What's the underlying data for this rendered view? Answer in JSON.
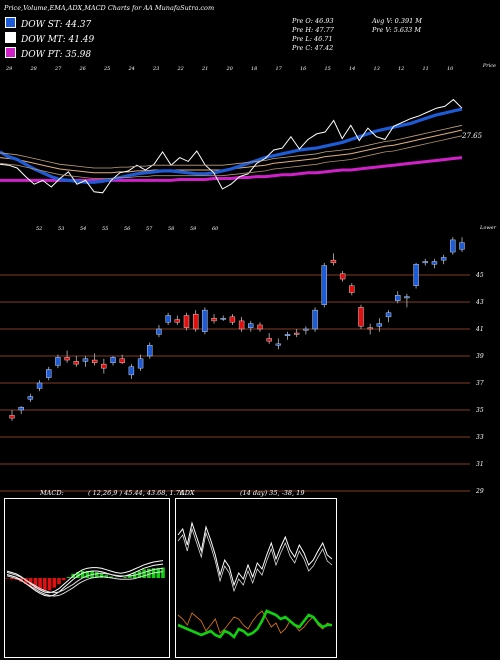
{
  "header": {
    "title": "Price,Volume,EMA,ADX,MACD Charts for AA MunafaSutra.com"
  },
  "legend": [
    {
      "label": "DOW ST: 44.37",
      "color": "#1e5bd6"
    },
    {
      "label": "DOW MT: 41.49",
      "color": "#ffffff"
    },
    {
      "label": "DOW PT: 35.98",
      "color": "#d020c8"
    }
  ],
  "stats": {
    "open": "Pre  O: 46.93",
    "high": "Pre  H: 47.77",
    "low": "Pre  L: 46.71",
    "close": "Pre  C: 47.42",
    "avg_vol": "Avg V: 0.391 M",
    "pre_vol": "Pre  V: 5.633 M"
  },
  "colors": {
    "up": "#1e5bd6",
    "down": "#e01010",
    "ema_fast": "#1e5bd6",
    "ema_pt": "#d020c8",
    "grid": "#b05030",
    "adx_green": "#10d010",
    "adx_orange": "#d07010"
  },
  "chart_data": [
    {
      "type": "line",
      "title": "Price vs EMA",
      "annotations": [
        "Price",
        "27.65",
        "Lower"
      ],
      "top_axis_labels": [
        "29",
        "28",
        "27",
        "26",
        "25",
        "24",
        "23",
        "22",
        "21",
        "20",
        "18",
        "17",
        "16",
        "15",
        "14",
        "13",
        "12",
        "11",
        "10"
      ],
      "upper_labels": [
        "52",
        "53",
        "54",
        "55",
        "56",
        "57",
        "58",
        "59",
        "60"
      ],
      "series": [
        {
          "name": "Price",
          "values": [
            22.5,
            22.4,
            22.1,
            21.2,
            20.4,
            20.8,
            20.1,
            21.0,
            21.7,
            20.4,
            20.8,
            19.6,
            19.5,
            20.8,
            21.6,
            21.8,
            22.4,
            21.9,
            22.5,
            23.8,
            22.4,
            23.2,
            22.8,
            23.9,
            22.4,
            21.6,
            19.9,
            20.4,
            21.2,
            21.5,
            22.6,
            23.1,
            24.0,
            24.2,
            25.4,
            24.1,
            25.1,
            25.7,
            25.9,
            27.1,
            25.2,
            26.6,
            25.0,
            26.3,
            25.4,
            25.1,
            26.5,
            26.9,
            27.3,
            27.6,
            28.0,
            28.4,
            28.6,
            29.3,
            28.4
          ]
        },
        {
          "name": "DOW ST",
          "values": [
            23.8,
            23.3,
            23.0,
            22.5,
            22.0,
            21.6,
            21.2,
            20.9,
            20.8,
            20.7,
            20.6,
            20.6,
            20.7,
            20.9,
            21.1,
            21.3,
            21.5,
            21.6,
            21.7,
            21.8,
            21.8,
            21.7,
            21.6,
            21.5,
            21.5,
            21.6,
            21.8,
            22.0,
            22.3,
            22.6,
            22.9,
            23.2,
            23.4,
            23.6,
            23.8,
            24.0,
            24.1,
            24.2,
            24.4,
            24.6,
            24.8,
            25.1,
            25.4,
            25.7,
            26.0,
            26.2,
            26.4,
            26.6,
            26.8,
            27.1,
            27.4,
            27.7,
            27.9,
            28.1,
            28.3
          ]
        },
        {
          "name": "DOW MT",
          "values": [
            23.2,
            23.1,
            23.0,
            22.8,
            22.6,
            22.4,
            22.2,
            22.0,
            21.9,
            21.8,
            21.7,
            21.6,
            21.6,
            21.6,
            21.7,
            21.7,
            21.8,
            21.8,
            21.9,
            21.9,
            21.9,
            21.9,
            21.9,
            21.9,
            21.9,
            21.9,
            21.9,
            22.0,
            22.1,
            22.2,
            22.3,
            22.4,
            22.6,
            22.7,
            22.8,
            22.9,
            23.0,
            23.1,
            23.3,
            23.4,
            23.5,
            23.6,
            23.8,
            24.0,
            24.2,
            24.4,
            24.5,
            24.7,
            24.9,
            25.1,
            25.3,
            25.5,
            25.7,
            25.9,
            26.1
          ]
        },
        {
          "name": "DOW PT",
          "values": [
            20.8,
            20.8,
            20.8,
            20.8,
            20.8,
            20.8,
            20.8,
            20.8,
            20.8,
            20.8,
            20.8,
            20.8,
            20.8,
            20.8,
            20.8,
            20.8,
            20.8,
            20.8,
            20.8,
            20.8,
            20.8,
            20.9,
            20.9,
            20.9,
            20.9,
            21.0,
            21.0,
            21.0,
            21.1,
            21.1,
            21.2,
            21.2,
            21.3,
            21.4,
            21.4,
            21.5,
            21.6,
            21.6,
            21.7,
            21.8,
            21.9,
            21.9,
            22.0,
            22.1,
            22.2,
            22.3,
            22.4,
            22.5,
            22.6,
            22.7,
            22.8,
            22.9,
            23.0,
            23.1,
            23.2
          ]
        }
      ]
    },
    {
      "type": "bar",
      "title": "Daily candles",
      "y_ticks": [
        "45",
        "43",
        "41",
        "39",
        "37",
        "35",
        "33",
        "31",
        "29"
      ],
      "ylim": [
        28,
        48
      ],
      "candles": [
        [
          34.6,
          35.0,
          34.2,
          34.4
        ],
        [
          35.0,
          35.3,
          34.7,
          35.2
        ],
        [
          35.8,
          36.2,
          35.6,
          36.0
        ],
        [
          36.6,
          37.2,
          36.4,
          37.0
        ],
        [
          37.4,
          38.2,
          37.2,
          38.0
        ],
        [
          38.3,
          39.1,
          38.1,
          38.9
        ],
        [
          38.9,
          39.4,
          38.5,
          38.7
        ],
        [
          38.6,
          39.0,
          38.2,
          38.4
        ],
        [
          38.6,
          39.0,
          38.2,
          38.8
        ],
        [
          38.7,
          39.2,
          38.3,
          38.5
        ],
        [
          38.4,
          38.8,
          37.7,
          38.1
        ],
        [
          38.5,
          39.0,
          38.3,
          38.9
        ],
        [
          38.8,
          39.1,
          38.4,
          38.5
        ],
        [
          37.6,
          38.4,
          37.3,
          38.2
        ],
        [
          38.1,
          39.1,
          37.9,
          38.8
        ],
        [
          39.0,
          40.0,
          38.8,
          39.8
        ],
        [
          40.6,
          41.3,
          40.4,
          41.0
        ],
        [
          41.5,
          42.2,
          41.3,
          42.0
        ],
        [
          41.7,
          42.0,
          41.3,
          41.5
        ],
        [
          42.0,
          42.2,
          40.9,
          41.1
        ],
        [
          42.1,
          42.4,
          40.8,
          41.0
        ],
        [
          40.8,
          42.6,
          40.6,
          42.4
        ],
        [
          41.8,
          42.1,
          41.4,
          41.6
        ],
        [
          41.8,
          42.0,
          41.6,
          41.8
        ],
        [
          41.9,
          42.1,
          41.3,
          41.5
        ],
        [
          41.6,
          41.9,
          40.8,
          41.0
        ],
        [
          41.1,
          41.6,
          40.8,
          41.4
        ],
        [
          41.3,
          41.5,
          40.8,
          41.0
        ],
        [
          40.3,
          40.7,
          39.9,
          40.1
        ],
        [
          39.8,
          40.3,
          39.5,
          39.9
        ],
        [
          40.5,
          40.8,
          40.2,
          40.6
        ],
        [
          40.7,
          41.0,
          40.4,
          40.6
        ],
        [
          40.9,
          41.2,
          40.6,
          41.0
        ],
        [
          41.0,
          42.6,
          40.8,
          42.4
        ],
        [
          42.8,
          45.9,
          42.6,
          45.7
        ],
        [
          46.1,
          46.6,
          45.7,
          45.9
        ],
        [
          45.1,
          45.3,
          44.5,
          44.7
        ],
        [
          44.2,
          44.4,
          43.5,
          43.7
        ],
        [
          42.6,
          42.8,
          41.0,
          41.2
        ],
        [
          41.1,
          41.4,
          40.6,
          41.0
        ],
        [
          41.2,
          41.8,
          40.8,
          41.4
        ],
        [
          41.9,
          42.4,
          41.5,
          42.2
        ],
        [
          43.1,
          43.8,
          42.9,
          43.5
        ],
        [
          43.3,
          43.6,
          42.6,
          43.4
        ],
        [
          44.2,
          45.9,
          44.0,
          45.8
        ],
        [
          45.9,
          46.2,
          45.7,
          46.0
        ],
        [
          45.8,
          46.2,
          45.5,
          46.0
        ],
        [
          46.1,
          46.5,
          45.8,
          46.3
        ],
        [
          46.7,
          47.8,
          46.5,
          47.6
        ],
        [
          46.9,
          47.8,
          46.7,
          47.4
        ]
      ]
    },
    {
      "type": "line",
      "title": "MACD",
      "params": "( 12,26,9 ) 45.44,  43.68,  1.76",
      "series": [
        {
          "name": "MACD",
          "values": [
            0.5,
            0.3,
            0.1,
            -0.3,
            -0.8,
            -1.3,
            -1.8,
            -2.2,
            -2.5,
            -2.6,
            -2.4,
            -2.0,
            -1.4,
            -0.8,
            -0.2,
            0.3,
            0.7,
            0.9,
            1.0,
            1.0,
            0.9,
            0.7,
            0.5,
            0.3,
            0.2,
            0.3,
            0.5,
            0.8,
            1.1,
            1.4,
            1.6,
            1.8,
            1.9,
            2.0
          ]
        },
        {
          "name": "Signal",
          "values": [
            0.8,
            0.6,
            0.4,
            0.1,
            -0.3,
            -0.7,
            -1.1,
            -1.5,
            -1.8,
            -2.0,
            -2.1,
            -2.0,
            -1.7,
            -1.3,
            -0.9,
            -0.4,
            0.0,
            0.3,
            0.5,
            0.6,
            0.7,
            0.6,
            0.5,
            0.4,
            0.3,
            0.3,
            0.3,
            0.4,
            0.6,
            0.8,
            1.0,
            1.2,
            1.3,
            1.4
          ]
        }
      ]
    },
    {
      "type": "line",
      "title": "ADX",
      "params": "(14 day) 35,  -38,  19",
      "series": [
        {
          "name": "DI+",
          "values": [
            120,
            126,
            110,
            132,
            118,
            104,
            128,
            115,
            100,
            80,
            95,
            88,
            70,
            82,
            76,
            90,
            78,
            92,
            86,
            100,
            112,
            96,
            108,
            118,
            105,
            98,
            110,
            102,
            90,
            95,
            104,
            112,
            100,
            96
          ]
        },
        {
          "name": "DI-",
          "values": [
            40,
            36,
            30,
            42,
            38,
            34,
            24,
            30,
            36,
            22,
            26,
            32,
            38,
            36,
            30,
            26,
            34,
            40,
            44,
            36,
            28,
            32,
            22,
            26,
            34,
            30,
            24,
            28,
            34,
            38,
            30,
            26,
            32,
            30
          ]
        },
        {
          "name": "ADX",
          "values": [
            30,
            28,
            26,
            24,
            22,
            20,
            22,
            24,
            20,
            18,
            24,
            22,
            18,
            26,
            24,
            20,
            22,
            26,
            34,
            44,
            42,
            40,
            36,
            38,
            34,
            30,
            28,
            34,
            40,
            38,
            32,
            28,
            30,
            30
          ]
        }
      ]
    }
  ]
}
